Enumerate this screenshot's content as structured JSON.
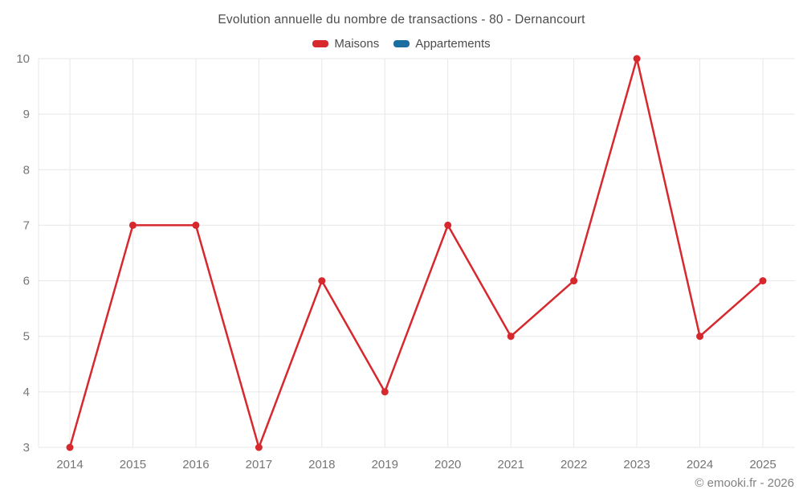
{
  "header": {
    "title": "Evolution annuelle du nombre de transactions - 80 - Dernancourt"
  },
  "legend": {
    "items": [
      {
        "label": "Maisons",
        "color": "#d7282d"
      },
      {
        "label": "Appartements",
        "color": "#1b6ea0"
      }
    ]
  },
  "footer": {
    "credit": "© emooki.fr - 2026"
  },
  "colors": {
    "maisons": "#d7282d",
    "appartements": "#1b6ea0",
    "grid": "#e7e7e7",
    "tick_text": "#757575",
    "title_text": "#4c4c4c",
    "footer_text": "#828282",
    "background": "#ffffff"
  },
  "chart_data": {
    "type": "line",
    "title": "Evolution annuelle du nombre de transactions - 80 - Dernancourt",
    "categories": [
      "2014",
      "2015",
      "2016",
      "2017",
      "2018",
      "2019",
      "2020",
      "2021",
      "2022",
      "2023",
      "2024",
      "2025"
    ],
    "series": [
      {
        "name": "Maisons",
        "color": "#d7282d",
        "values": [
          3,
          7,
          7,
          3,
          6,
          4,
          7,
          5,
          6,
          10,
          5,
          6
        ]
      },
      {
        "name": "Appartements",
        "color": "#1b6ea0",
        "values": []
      }
    ],
    "xlabel": "",
    "ylabel": "",
    "ylim": [
      3,
      10
    ],
    "yticks": [
      3,
      4,
      5,
      6,
      7,
      8,
      9,
      10
    ],
    "grid": true,
    "legend_position": "top",
    "marker": "circle",
    "annotation": "© emooki.fr - 2026"
  }
}
